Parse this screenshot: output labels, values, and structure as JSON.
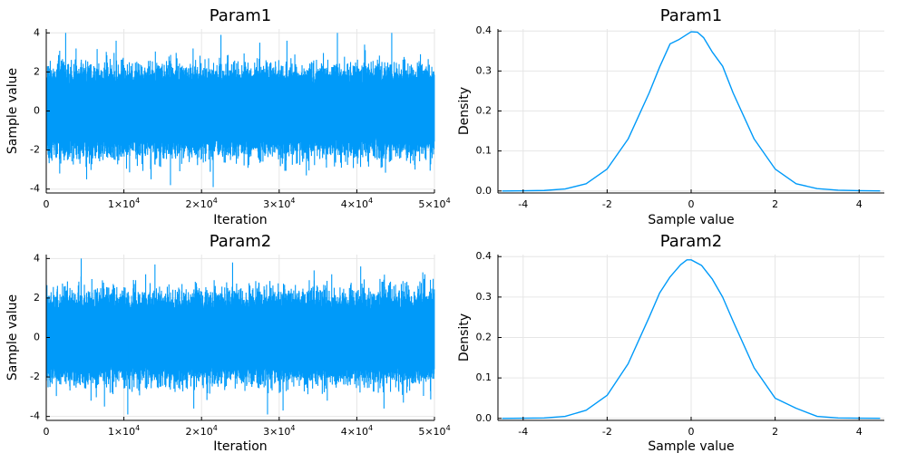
{
  "series_color": "#009af9",
  "chart_data": [
    {
      "type": "line",
      "title": "Param1",
      "xlabel": "Iteration",
      "ylabel": "Sample value",
      "xlim": [
        0,
        50000
      ],
      "ylim": [
        -4.2,
        4.2
      ],
      "x_ticks": [
        0,
        10000,
        20000,
        30000,
        40000,
        50000
      ],
      "x_tick_labels": [
        {
          "base": "0",
          "exp": ""
        },
        {
          "base": "1×10",
          "exp": "4"
        },
        {
          "base": "2×10",
          "exp": "4"
        },
        {
          "base": "3×10",
          "exp": "4"
        },
        {
          "base": "4×10",
          "exp": "4"
        },
        {
          "base": "5×10",
          "exp": "4"
        }
      ],
      "y_ticks": [
        -4,
        -2,
        0,
        2,
        4
      ],
      "y_tick_labels": [
        "-4",
        "-2",
        "0",
        "2",
        "4"
      ],
      "grid": true,
      "series": [
        {
          "kind": "trace",
          "n_samples": 50000,
          "center": 0,
          "bulk_low": -1.7,
          "bulk_high": 1.7,
          "extremes": [
            [
              2500,
              4.0
            ],
            [
              5200,
              -3.5
            ],
            [
              9000,
              3.6
            ],
            [
              13500,
              -3.5
            ],
            [
              16000,
              -3.8
            ],
            [
              21500,
              -3.9
            ],
            [
              22500,
              3.9
            ],
            [
              27500,
              3.5
            ],
            [
              31000,
              3.6
            ],
            [
              33500,
              -3.3
            ],
            [
              37500,
              4.0
            ],
            [
              41000,
              3.4
            ],
            [
              44500,
              4.0
            ],
            [
              47500,
              -3.0
            ]
          ]
        }
      ]
    },
    {
      "type": "line",
      "title": "Param1",
      "xlabel": "Sample value",
      "ylabel": "Density",
      "xlim": [
        -4.6,
        4.6
      ],
      "ylim": [
        -0.005,
        0.405
      ],
      "x_ticks": [
        -4,
        -2,
        0,
        2,
        4
      ],
      "x_tick_labels": [
        "-4",
        "-2",
        "0",
        "2",
        "4"
      ],
      "y_ticks": [
        0,
        0.1,
        0.2,
        0.3,
        0.4
      ],
      "y_tick_labels": [
        "0.0",
        "0.1",
        "0.2",
        "0.3",
        "0.4"
      ],
      "grid": true,
      "series": [
        {
          "kind": "density",
          "x": [
            -4.5,
            -4.0,
            -3.5,
            -3.0,
            -2.5,
            -2.0,
            -1.5,
            -1.0,
            -0.75,
            -0.5,
            -0.3,
            0.0,
            0.15,
            0.3,
            0.5,
            0.75,
            1.0,
            1.5,
            2.0,
            2.5,
            3.0,
            3.5,
            4.0,
            4.5
          ],
          "y": [
            0.0,
            0.0005,
            0.0012,
            0.005,
            0.018,
            0.055,
            0.13,
            0.245,
            0.31,
            0.368,
            0.378,
            0.398,
            0.397,
            0.383,
            0.348,
            0.312,
            0.245,
            0.13,
            0.055,
            0.018,
            0.006,
            0.002,
            0.0008,
            0.0003
          ]
        }
      ]
    },
    {
      "type": "line",
      "title": "Param2",
      "xlabel": "Iteration",
      "ylabel": "Sample value",
      "xlim": [
        0,
        50000
      ],
      "ylim": [
        -4.2,
        4.2
      ],
      "x_ticks": [
        0,
        10000,
        20000,
        30000,
        40000,
        50000
      ],
      "x_tick_labels": [
        {
          "base": "0",
          "exp": ""
        },
        {
          "base": "1×10",
          "exp": "4"
        },
        {
          "base": "2×10",
          "exp": "4"
        },
        {
          "base": "3×10",
          "exp": "4"
        },
        {
          "base": "4×10",
          "exp": "4"
        },
        {
          "base": "5×10",
          "exp": "4"
        }
      ],
      "y_ticks": [
        -4,
        -2,
        0,
        2,
        4
      ],
      "y_tick_labels": [
        "-4",
        "-2",
        "0",
        "2",
        "4"
      ],
      "grid": true,
      "series": [
        {
          "kind": "trace",
          "n_samples": 50000,
          "center": 0,
          "bulk_low": -1.7,
          "bulk_high": 1.7,
          "extremes": [
            [
              4500,
              4.0
            ],
            [
              7500,
              -3.5
            ],
            [
              10500,
              -3.9
            ],
            [
              14000,
              3.7
            ],
            [
              19000,
              -3.6
            ],
            [
              24000,
              3.8
            ],
            [
              28500,
              -3.9
            ],
            [
              30500,
              -3.7
            ],
            [
              34500,
              3.4
            ],
            [
              40500,
              3.6
            ],
            [
              43500,
              -3.6
            ],
            [
              46000,
              -3.3
            ],
            [
              48500,
              3.3
            ]
          ]
        }
      ]
    },
    {
      "type": "line",
      "title": "Param2",
      "xlabel": "Sample value",
      "ylabel": "Density",
      "xlim": [
        -4.6,
        4.6
      ],
      "ylim": [
        -0.005,
        0.405
      ],
      "x_ticks": [
        -4,
        -2,
        0,
        2,
        4
      ],
      "x_tick_labels": [
        "-4",
        "-2",
        "0",
        "2",
        "4"
      ],
      "y_ticks": [
        0,
        0.1,
        0.2,
        0.3,
        0.4
      ],
      "y_tick_labels": [
        "0.0",
        "0.1",
        "0.2",
        "0.3",
        "0.4"
      ],
      "grid": true,
      "series": [
        {
          "kind": "density",
          "x": [
            -4.5,
            -4.0,
            -3.5,
            -3.0,
            -2.5,
            -2.0,
            -1.5,
            -1.0,
            -0.75,
            -0.5,
            -0.25,
            -0.1,
            0.0,
            0.25,
            0.5,
            0.75,
            1.0,
            1.5,
            2.0,
            2.5,
            3.0,
            3.5,
            4.0,
            4.5
          ],
          "y": [
            0.0,
            0.0004,
            0.001,
            0.005,
            0.02,
            0.057,
            0.135,
            0.25,
            0.31,
            0.35,
            0.38,
            0.392,
            0.392,
            0.378,
            0.345,
            0.3,
            0.24,
            0.125,
            0.05,
            0.025,
            0.005,
            0.001,
            0.0005,
            0.0002
          ]
        }
      ]
    }
  ]
}
